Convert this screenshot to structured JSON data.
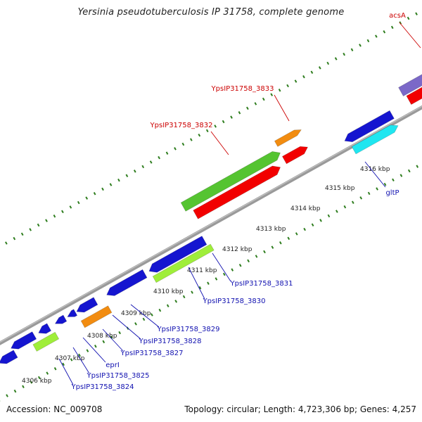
{
  "title": "Yersinia pseudotuberculosis IP 31758, complete genome",
  "footer": {
    "accession": "Accession: NC_009708",
    "summary": "Topology: circular; Length: 4,723,306 bp; Genes: 4,257"
  },
  "colors": {
    "backbone": "#8c8c8c",
    "tick": "#2e7d1e",
    "cds_forward": "#1515d0",
    "cds_reverse": "#1515d0",
    "trna_green": "#55c431",
    "trna_lime": "#9fee3a",
    "orange": "#f28c10",
    "red": "#f20000",
    "cyan": "#1fe6f0",
    "purple": "#7b68c8",
    "label_red": "#cc0000",
    "label_blue": "#1010b0"
  },
  "scale": {
    "unit": "kbp",
    "tick_labels": [
      {
        "text": "4306 kbp",
        "kbp": 4306
      },
      {
        "text": "4307 kbp",
        "kbp": 4307
      },
      {
        "text": "4308 kbp",
        "kbp": 4308
      },
      {
        "text": "4309 kbp",
        "kbp": 4309
      },
      {
        "text": "4310 kbp",
        "kbp": 4310
      },
      {
        "text": "4311 kbp",
        "kbp": 4311
      },
      {
        "text": "4312 kbp",
        "kbp": 4312
      },
      {
        "text": "4313 kbp",
        "kbp": 4313
      },
      {
        "text": "4314 kbp",
        "kbp": 4314
      },
      {
        "text": "4315 kbp",
        "kbp": 4315
      },
      {
        "text": "4316 kbp",
        "kbp": 4316
      }
    ]
  },
  "gene_labels": [
    {
      "text": "YpsIP31758_3833",
      "color": "red"
    },
    {
      "text": "YpsIP31758_3832",
      "color": "red"
    },
    {
      "text": "acsA",
      "color": "red"
    },
    {
      "text": "gltP",
      "color": "blue"
    },
    {
      "text": "YpsIP31758_3831",
      "color": "blue"
    },
    {
      "text": "YpsIP31758_3830",
      "color": "blue"
    },
    {
      "text": "YpsIP31758_3829",
      "color": "blue"
    },
    {
      "text": "YpsIP31758_3828",
      "color": "blue"
    },
    {
      "text": "YpsIP31758_3827",
      "color": "blue"
    },
    {
      "text": "eprI",
      "color": "blue"
    },
    {
      "text": "YpsIP31758_3825",
      "color": "blue"
    },
    {
      "text": "YpsIP31758_3824",
      "color": "blue"
    }
  ]
}
